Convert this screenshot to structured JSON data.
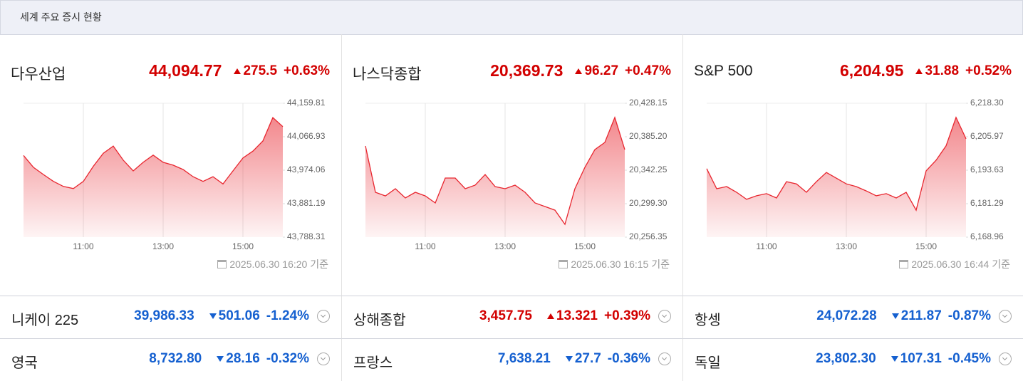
{
  "header": {
    "title": "세계 주요 증시 현황"
  },
  "chart_data": [
    {
      "type": "area",
      "name": "다우산업",
      "price": "44,094.77",
      "change": "275.5",
      "pct": "+0.63%",
      "direction": "up",
      "timestamp": "2025.06.30 16:20 기준",
      "color": "#e8262f",
      "x": [
        "09:30",
        "09:45",
        "10:00",
        "10:15",
        "10:30",
        "10:45",
        "11:00",
        "11:15",
        "11:30",
        "11:45",
        "12:00",
        "12:15",
        "12:30",
        "12:45",
        "13:00",
        "13:15",
        "13:30",
        "13:45",
        "14:00",
        "14:15",
        "14:30",
        "14:45",
        "15:00",
        "15:15",
        "15:30",
        "15:45",
        "16:00"
      ],
      "values": [
        44015,
        43982,
        43962,
        43943,
        43929,
        43923,
        43943,
        43985,
        44021,
        44041,
        44002,
        43972,
        43996,
        44016,
        43996,
        43988,
        43976,
        43956,
        43943,
        43956,
        43936,
        43972,
        44008,
        44027,
        44055,
        44120,
        44095
      ],
      "xlim": [
        "09:30",
        "16:00"
      ],
      "xticks": [
        "11:00",
        "13:00",
        "15:00"
      ],
      "ylim": [
        43788.31,
        44159.81
      ],
      "yticks": [
        {
          "value": 43788.31,
          "label": "43,788.31"
        },
        {
          "value": 43881.19,
          "label": "43,881.19"
        },
        {
          "value": 43974.06,
          "label": "43,974.06"
        },
        {
          "value": 44066.93,
          "label": "44,066.93"
        },
        {
          "value": 44159.81,
          "label": "44,159.81"
        }
      ]
    },
    {
      "type": "area",
      "name": "나스닥종합",
      "price": "20,369.73",
      "change": "96.27",
      "pct": "+0.47%",
      "direction": "up",
      "timestamp": "2025.06.30 16:15 기준",
      "color": "#e8262f",
      "x": [
        "09:30",
        "09:45",
        "10:00",
        "10:15",
        "10:30",
        "10:45",
        "11:00",
        "11:15",
        "11:30",
        "11:45",
        "12:00",
        "12:15",
        "12:30",
        "12:45",
        "13:00",
        "13:15",
        "13:30",
        "13:45",
        "14:00",
        "14:15",
        "14:30",
        "14:45",
        "15:00",
        "15:15",
        "15:30",
        "15:45",
        "16:00"
      ],
      "values": [
        20373.3,
        20313.9,
        20309.3,
        20318.5,
        20306.6,
        20313.9,
        20309.3,
        20300.2,
        20332.2,
        20332.2,
        20318.5,
        20323.1,
        20336.7,
        20321.2,
        20318.5,
        20323.1,
        20313.9,
        20300.2,
        20295.6,
        20291.0,
        20272.8,
        20318.5,
        20345.9,
        20368.7,
        20377.9,
        20409.9,
        20368.7
      ],
      "xlim": [
        "09:30",
        "16:00"
      ],
      "xticks": [
        "11:00",
        "13:00",
        "15:00"
      ],
      "ylim": [
        20256.35,
        20428.15
      ],
      "yticks": [
        {
          "value": 20256.35,
          "label": "20,256.35"
        },
        {
          "value": 20299.3,
          "label": "20,299.30"
        },
        {
          "value": 20342.25,
          "label": "20,342.25"
        },
        {
          "value": 20385.2,
          "label": "20,385.20"
        },
        {
          "value": 20428.15,
          "label": "20,428.15"
        }
      ]
    },
    {
      "type": "area",
      "name": "S&P 500",
      "price": "6,204.95",
      "change": "31.88",
      "pct": "+0.52%",
      "direction": "up",
      "timestamp": "2025.06.30 16:44 기준",
      "color": "#e8262f",
      "x": [
        "09:30",
        "09:45",
        "10:00",
        "10:15",
        "10:30",
        "10:45",
        "11:00",
        "11:15",
        "11:30",
        "11:45",
        "12:00",
        "12:15",
        "12:30",
        "12:45",
        "13:00",
        "13:15",
        "13:30",
        "13:45",
        "14:00",
        "14:15",
        "14:30",
        "14:45",
        "15:00",
        "15:15",
        "15:30",
        "15:45",
        "16:00"
      ],
      "values": [
        6194.2,
        6186.8,
        6187.6,
        6185.5,
        6182.9,
        6184.2,
        6185.0,
        6183.4,
        6189.4,
        6188.6,
        6185.5,
        6189.4,
        6192.8,
        6190.7,
        6188.6,
        6187.6,
        6186.0,
        6184.2,
        6185.0,
        6183.4,
        6185.5,
        6178.9,
        6193.4,
        6197.3,
        6202.6,
        6213.1,
        6205.2
      ],
      "xlim": [
        "09:30",
        "16:00"
      ],
      "xticks": [
        "11:00",
        "13:00",
        "15:00"
      ],
      "ylim": [
        6168.96,
        6218.3
      ],
      "yticks": [
        {
          "value": 6168.96,
          "label": "6,168.96"
        },
        {
          "value": 6181.29,
          "label": "6,181.29"
        },
        {
          "value": 6193.63,
          "label": "6,193.63"
        },
        {
          "value": 6205.97,
          "label": "6,205.97"
        },
        {
          "value": 6218.3,
          "label": "6,218.30"
        }
      ]
    }
  ],
  "indices": [
    {
      "name": "니케이 225",
      "price": "39,986.33",
      "change": "501.06",
      "pct": "-1.24%",
      "direction": "down"
    },
    {
      "name": "상해종합",
      "price": "3,457.75",
      "change": "13.321",
      "pct": "+0.39%",
      "direction": "up"
    },
    {
      "name": "항셍",
      "price": "24,072.28",
      "change": "211.87",
      "pct": "-0.87%",
      "direction": "down"
    },
    {
      "name": "영국",
      "price": "8,732.80",
      "change": "28.16",
      "pct": "-0.32%",
      "direction": "down"
    },
    {
      "name": "프랑스",
      "price": "7,638.21",
      "change": "27.7",
      "pct": "-0.36%",
      "direction": "down"
    },
    {
      "name": "독일",
      "price": "23,802.30",
      "change": "107.31",
      "pct": "-0.45%",
      "direction": "down"
    }
  ]
}
